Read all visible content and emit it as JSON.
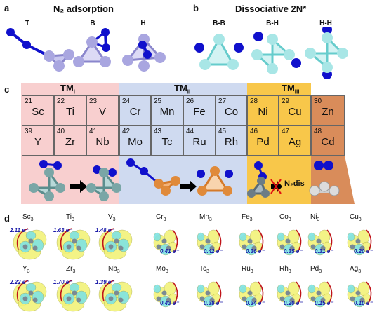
{
  "panels": {
    "a": {
      "letter": "a",
      "title": "N₂ adsorption",
      "labels": [
        "T",
        "B",
        "H"
      ]
    },
    "b": {
      "letter": "b",
      "title": "Dissociative 2N*",
      "labels": [
        "B-B",
        "B-H",
        "H-H"
      ]
    },
    "c": {
      "letter": "c"
    },
    "d": {
      "letter": "d"
    }
  },
  "groups": {
    "tm1": {
      "base": "TM",
      "sub": "I",
      "color": "#f8cfcf"
    },
    "tm2": {
      "base": "TM",
      "sub": "II",
      "color": "#cfdaf0"
    },
    "tm3": {
      "base": "TM",
      "sub": "III",
      "color": "#f8c74a"
    },
    "tm4": {
      "color": "#d98c5a"
    }
  },
  "elements_row1": [
    {
      "num": "21",
      "sym": "Sc"
    },
    {
      "num": "22",
      "sym": "Ti"
    },
    {
      "num": "23",
      "sym": "V"
    },
    {
      "num": "24",
      "sym": "Cr"
    },
    {
      "num": "25",
      "sym": "Mn"
    },
    {
      "num": "26",
      "sym": "Fe"
    },
    {
      "num": "27",
      "sym": "Co"
    },
    {
      "num": "28",
      "sym": "Ni"
    },
    {
      "num": "29",
      "sym": "Cu"
    },
    {
      "num": "30",
      "sym": "Zn"
    }
  ],
  "elements_row2": [
    {
      "num": "39",
      "sym": "Y"
    },
    {
      "num": "40",
      "sym": "Zr"
    },
    {
      "num": "41",
      "sym": "Nb"
    },
    {
      "num": "42",
      "sym": "Mo"
    },
    {
      "num": "43",
      "sym": "Tc"
    },
    {
      "num": "44",
      "sym": "Ru"
    },
    {
      "num": "45",
      "sym": "Rh"
    },
    {
      "num": "46",
      "sym": "Pd"
    },
    {
      "num": "47",
      "sym": "Ag"
    },
    {
      "num": "48",
      "sym": "Cd"
    }
  ],
  "ndis_label": "N₂dis",
  "clusters_row1": [
    {
      "el": "Sc",
      "sub": "3",
      "charge": "2.11 e⁻"
    },
    {
      "el": "Ti",
      "sub": "3",
      "charge": "1.63 e⁻"
    },
    {
      "el": "V",
      "sub": "3",
      "charge": "1.48 e⁻"
    },
    {
      "el": "Cr",
      "sub": "3",
      "charge": "0.41 e⁻"
    },
    {
      "el": "Mn",
      "sub": "3",
      "charge": "0.42 e⁻"
    },
    {
      "el": "Fe",
      "sub": "3",
      "charge": "0.36 e⁻"
    },
    {
      "el": "Co",
      "sub": "3",
      "charge": "0.35 e⁻"
    },
    {
      "el": "Ni",
      "sub": "3",
      "charge": "0.31 e⁻"
    },
    {
      "el": "Cu",
      "sub": "3",
      "charge": "0.20 e⁻"
    }
  ],
  "clusters_row2": [
    {
      "el": "Y",
      "sub": "3",
      "charge": "2.22 e⁻"
    },
    {
      "el": "Zr",
      "sub": "3",
      "charge": "1.70 e⁻"
    },
    {
      "el": "Nb",
      "sub": "3",
      "charge": "1.39 e⁻"
    },
    {
      "el": "Mo",
      "sub": "3",
      "charge": "0.43 e⁻"
    },
    {
      "el": "Tc",
      "sub": "3",
      "charge": "0.38 e⁻"
    },
    {
      "el": "Ru",
      "sub": "3",
      "charge": "0.34 e⁻"
    },
    {
      "el": "Rh",
      "sub": "3",
      "charge": "0.20 e⁻"
    },
    {
      "el": "Pd",
      "sub": "3",
      "charge": "0.15 e⁻"
    },
    {
      "el": "Ag",
      "sub": "3",
      "charge": "0.10 e⁻"
    }
  ],
  "colors": {
    "nitrogen": "#1010cc",
    "panel_a_metal": "#a9a6e0",
    "panel_b_metal": "#a8e6e6",
    "density_yellow": "#f2f27a",
    "density_cyan": "#7fe3e3"
  }
}
